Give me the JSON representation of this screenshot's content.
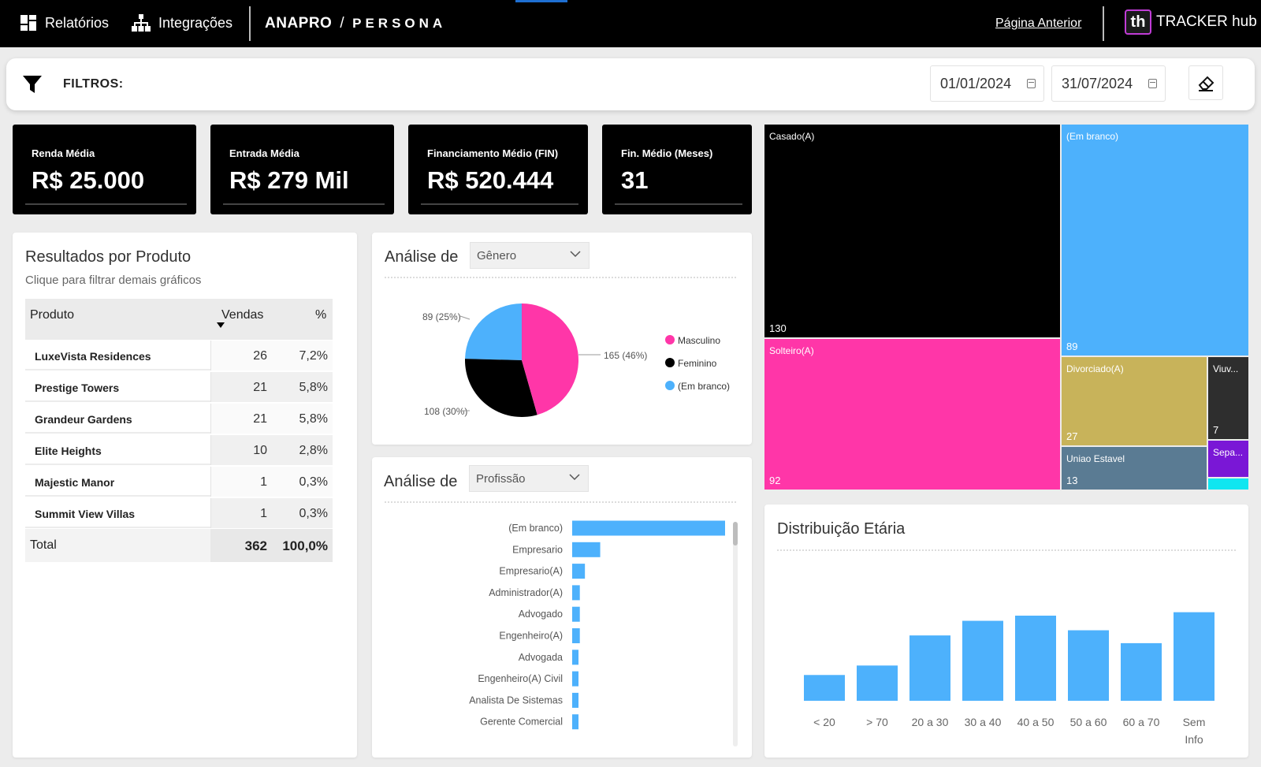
{
  "topbar": {
    "nav_reports": "Relatórios",
    "nav_integrations": "Integrações",
    "brand_left": "ANAPRO",
    "brand_slash": "/",
    "brand_right": "PERSONA",
    "prev_link": "Página Anterior",
    "tracker_logo": "th",
    "tracker_label": "TRACKER hub"
  },
  "filters": {
    "label": "FILTROS:",
    "date_start": "01/01/2024",
    "date_end": "31/07/2024"
  },
  "kpis": [
    {
      "label": "Renda Média",
      "value": "R$ 25.000"
    },
    {
      "label": "Entrada Média",
      "value": "R$ 279 Mil"
    },
    {
      "label": "Financiamento Médio (FIN)",
      "value": "R$ 520.444"
    },
    {
      "label": "Fin. Médio (Meses)",
      "value": "31"
    }
  ],
  "products": {
    "title": "Resultados por Produto",
    "subtitle": "Clique para filtrar demais gráficos",
    "col_product": "Produto",
    "col_sales": "Vendas",
    "col_pct": "%",
    "rows": [
      {
        "name": "LuxeVista Residences",
        "sales": "26",
        "pct": "7,2%"
      },
      {
        "name": "Prestige Towers",
        "sales": "21",
        "pct": "5,8%"
      },
      {
        "name": "Grandeur Gardens",
        "sales": "21",
        "pct": "5,8%"
      },
      {
        "name": "Elite Heights",
        "sales": "10",
        "pct": "2,8%"
      },
      {
        "name": "Majestic Manor",
        "sales": "1",
        "pct": "0,3%"
      },
      {
        "name": "Summit View Villas",
        "sales": "1",
        "pct": "0,3%"
      }
    ],
    "total_label": "Total",
    "total_sales": "362",
    "total_pct": "100,0%"
  },
  "gender": {
    "title": "Análise de",
    "select": "Gênero",
    "label_masc": "165 (46%)",
    "label_fem": "108 (30%)",
    "label_blank": "89 (25%)",
    "legend": [
      "Masculino",
      "Feminino",
      "(Em branco)"
    ]
  },
  "profession": {
    "title": "Análise de",
    "select": "Profissão"
  },
  "marital": {
    "cells": [
      {
        "label": "Casado(A)",
        "value": "130"
      },
      {
        "label": "(Em branco)",
        "value": "89"
      },
      {
        "label": "Solteiro(A)",
        "value": "92"
      },
      {
        "label": "Divorciado(A)",
        "value": "27"
      },
      {
        "label": "Viuv...",
        "value": "7"
      },
      {
        "label": "Uniao Estavel",
        "value": "13"
      },
      {
        "label": "Sepa...",
        "value": ""
      }
    ]
  },
  "age": {
    "title": "Distribuição Etária"
  },
  "colors": {
    "pink": "#ff36a8",
    "black": "#000000",
    "blue": "#4db1fc",
    "gold": "#c8b35a",
    "slate": "#5a7b93",
    "purple": "#7a17d6",
    "cyan": "#10e6f0",
    "viuvo": "#2e2e2e"
  },
  "chart_data": [
    {
      "type": "pie",
      "categories": [
        "Masculino",
        "Feminino",
        "(Em branco)"
      ],
      "values": [
        165,
        108,
        89
      ],
      "labels": [
        "165 (46%)",
        "108 (30%)",
        "89 (25%)"
      ],
      "colors": [
        "#ff36a8",
        "#000000",
        "#4db1fc"
      ],
      "legend": "right"
    },
    {
      "type": "bar",
      "orientation": "horizontal",
      "categories": [
        "(Em branco)",
        "Empresario",
        "Empresario(A)",
        "Administrador(A)",
        "Advogado",
        "Engenheiro(A)",
        "Advogada",
        "Engenheiro(A) Civil",
        "Analista De Sistemas",
        "Gerente Comercial"
      ],
      "values": [
        60,
        11,
        5,
        3,
        3,
        3,
        2,
        2,
        2,
        2
      ],
      "xlim": [
        0,
        60
      ]
    },
    {
      "type": "bar",
      "title": "Distribuição Etária",
      "categories": [
        "< 20",
        "> 70",
        "20 a 30",
        "30 a 40",
        "40 a 50",
        "50 a 60",
        "60 a 70",
        "Sem Info"
      ],
      "values": [
        30,
        41,
        76,
        93,
        99,
        82,
        67,
        103
      ],
      "ylim": [
        0,
        110
      ]
    },
    {
      "type": "treemap",
      "categories": [
        "Casado(A)",
        "(Em branco)",
        "Solteiro(A)",
        "Divorciado(A)",
        "Uniao Estavel",
        "Viuv...",
        "Sepa..."
      ],
      "values": [
        130,
        89,
        92,
        27,
        13,
        7,
        4
      ]
    }
  ]
}
